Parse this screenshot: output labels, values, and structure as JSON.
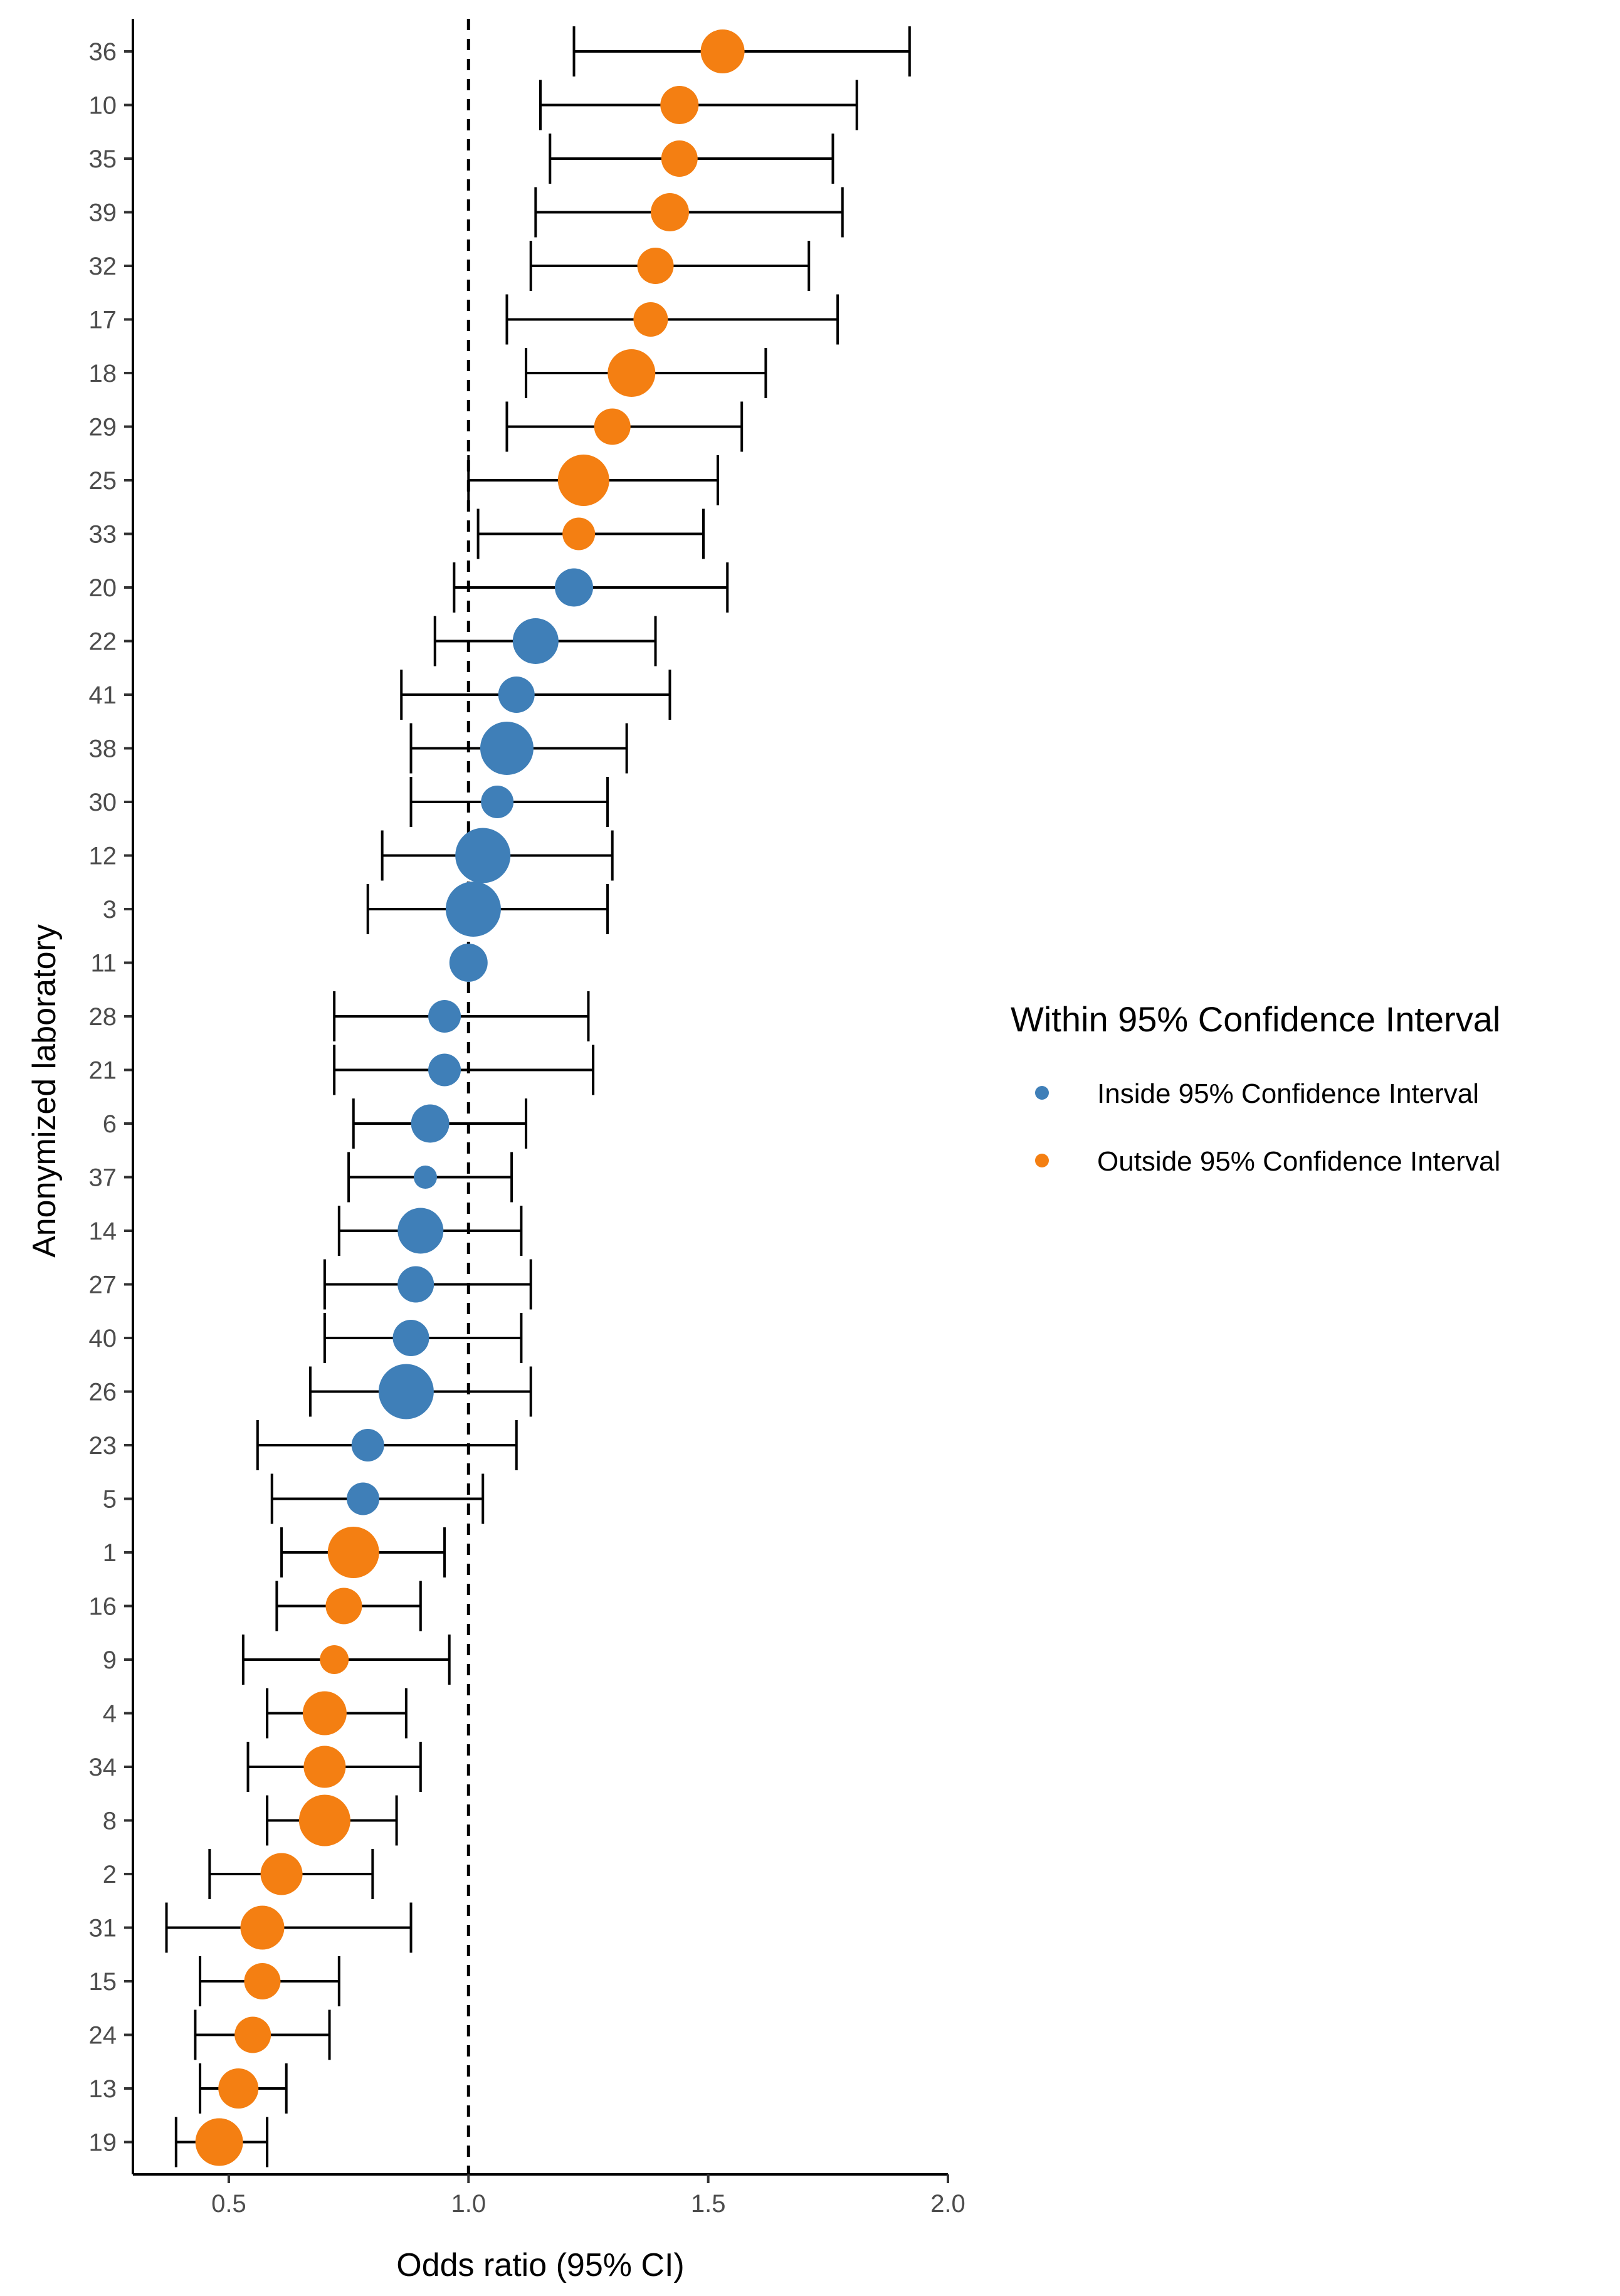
{
  "chart_data": {
    "type": "scatter",
    "subtype": "forest-plot",
    "title": "",
    "xlabel": "Odds ratio (95% CI)",
    "ylabel": "Anonymized laboratory",
    "xlim": [
      0.3,
      2.0
    ],
    "x_ticks": [
      0.5,
      1.0,
      1.5,
      2.0
    ],
    "x_tick_labels": [
      "0.5",
      "1.0",
      "1.5",
      "2.0"
    ],
    "reference_line": 1.0,
    "grid": false,
    "legend": {
      "title": "Within 95% Confidence Interval",
      "position": "right",
      "entries": [
        {
          "key": "inside",
          "label": "Inside 95% Confidence Interval",
          "color": "#3f7fb8"
        },
        {
          "key": "outside",
          "label": "Outside 95% Confidence Interval",
          "color": "#f47f12"
        }
      ]
    },
    "points": [
      {
        "lab": "36",
        "or": 1.53,
        "lo": 1.22,
        "hi": 1.92,
        "group": "outside",
        "weight": 0.7
      },
      {
        "lab": "10",
        "or": 1.44,
        "lo": 1.15,
        "hi": 1.81,
        "group": "outside",
        "weight": 0.55
      },
      {
        "lab": "35",
        "or": 1.44,
        "lo": 1.17,
        "hi": 1.76,
        "group": "outside",
        "weight": 0.5
      },
      {
        "lab": "39",
        "or": 1.42,
        "lo": 1.14,
        "hi": 1.78,
        "group": "outside",
        "weight": 0.55
      },
      {
        "lab": "32",
        "or": 1.39,
        "lo": 1.13,
        "hi": 1.71,
        "group": "outside",
        "weight": 0.5
      },
      {
        "lab": "17",
        "or": 1.38,
        "lo": 1.08,
        "hi": 1.77,
        "group": "outside",
        "weight": 0.45
      },
      {
        "lab": "18",
        "or": 1.34,
        "lo": 1.12,
        "hi": 1.62,
        "group": "outside",
        "weight": 0.8
      },
      {
        "lab": "29",
        "or": 1.3,
        "lo": 1.08,
        "hi": 1.57,
        "group": "outside",
        "weight": 0.5
      },
      {
        "lab": "25",
        "or": 1.24,
        "lo": 1.0,
        "hi": 1.52,
        "group": "outside",
        "weight": 0.9
      },
      {
        "lab": "33",
        "or": 1.23,
        "lo": 1.02,
        "hi": 1.49,
        "group": "outside",
        "weight": 0.4
      },
      {
        "lab": "20",
        "or": 1.22,
        "lo": 0.97,
        "hi": 1.54,
        "group": "inside",
        "weight": 0.55
      },
      {
        "lab": "22",
        "or": 1.14,
        "lo": 0.93,
        "hi": 1.39,
        "group": "inside",
        "weight": 0.75
      },
      {
        "lab": "41",
        "or": 1.1,
        "lo": 0.86,
        "hi": 1.42,
        "group": "inside",
        "weight": 0.5
      },
      {
        "lab": "38",
        "or": 1.08,
        "lo": 0.88,
        "hi": 1.33,
        "group": "inside",
        "weight": 0.95
      },
      {
        "lab": "30",
        "or": 1.06,
        "lo": 0.88,
        "hi": 1.29,
        "group": "inside",
        "weight": 0.4
      },
      {
        "lab": "12",
        "or": 1.03,
        "lo": 0.82,
        "hi": 1.3,
        "group": "inside",
        "weight": 1.0
      },
      {
        "lab": "3",
        "or": 1.01,
        "lo": 0.79,
        "hi": 1.29,
        "group": "inside",
        "weight": 1.0
      },
      {
        "lab": "11",
        "or": 1.0,
        "lo": null,
        "hi": null,
        "group": "inside",
        "weight": 0.55
      },
      {
        "lab": "28",
        "or": 0.95,
        "lo": 0.72,
        "hi": 1.25,
        "group": "inside",
        "weight": 0.4
      },
      {
        "lab": "21",
        "or": 0.95,
        "lo": 0.72,
        "hi": 1.26,
        "group": "inside",
        "weight": 0.4
      },
      {
        "lab": "6",
        "or": 0.92,
        "lo": 0.76,
        "hi": 1.12,
        "group": "inside",
        "weight": 0.55
      },
      {
        "lab": "37",
        "or": 0.91,
        "lo": 0.75,
        "hi": 1.09,
        "group": "inside",
        "weight": 0.15
      },
      {
        "lab": "14",
        "or": 0.9,
        "lo": 0.73,
        "hi": 1.11,
        "group": "inside",
        "weight": 0.75
      },
      {
        "lab": "27",
        "or": 0.89,
        "lo": 0.7,
        "hi": 1.13,
        "group": "inside",
        "weight": 0.5
      },
      {
        "lab": "40",
        "or": 0.88,
        "lo": 0.7,
        "hi": 1.11,
        "group": "inside",
        "weight": 0.5
      },
      {
        "lab": "26",
        "or": 0.87,
        "lo": 0.67,
        "hi": 1.13,
        "group": "inside",
        "weight": 1.0
      },
      {
        "lab": "23",
        "or": 0.79,
        "lo": 0.56,
        "hi": 1.1,
        "group": "inside",
        "weight": 0.4
      },
      {
        "lab": "5",
        "or": 0.78,
        "lo": 0.59,
        "hi": 1.03,
        "group": "inside",
        "weight": 0.4
      },
      {
        "lab": "1",
        "or": 0.76,
        "lo": 0.61,
        "hi": 0.95,
        "group": "outside",
        "weight": 0.9
      },
      {
        "lab": "16",
        "or": 0.74,
        "lo": 0.6,
        "hi": 0.9,
        "group": "outside",
        "weight": 0.5
      },
      {
        "lab": "9",
        "or": 0.72,
        "lo": 0.53,
        "hi": 0.96,
        "group": "outside",
        "weight": 0.3
      },
      {
        "lab": "4",
        "or": 0.7,
        "lo": 0.58,
        "hi": 0.87,
        "group": "outside",
        "weight": 0.7
      },
      {
        "lab": "34",
        "or": 0.7,
        "lo": 0.54,
        "hi": 0.9,
        "group": "outside",
        "weight": 0.65
      },
      {
        "lab": "8",
        "or": 0.7,
        "lo": 0.58,
        "hi": 0.85,
        "group": "outside",
        "weight": 0.9
      },
      {
        "lab": "2",
        "or": 0.61,
        "lo": 0.46,
        "hi": 0.8,
        "group": "outside",
        "weight": 0.65
      },
      {
        "lab": "31",
        "or": 0.57,
        "lo": 0.37,
        "hi": 0.88,
        "group": "outside",
        "weight": 0.7
      },
      {
        "lab": "15",
        "or": 0.57,
        "lo": 0.44,
        "hi": 0.73,
        "group": "outside",
        "weight": 0.5
      },
      {
        "lab": "24",
        "or": 0.55,
        "lo": 0.43,
        "hi": 0.71,
        "group": "outside",
        "weight": 0.5
      },
      {
        "lab": "13",
        "or": 0.52,
        "lo": 0.44,
        "hi": 0.62,
        "group": "outside",
        "weight": 0.6
      },
      {
        "lab": "19",
        "or": 0.48,
        "lo": 0.39,
        "hi": 0.58,
        "group": "outside",
        "weight": 0.8
      }
    ]
  }
}
